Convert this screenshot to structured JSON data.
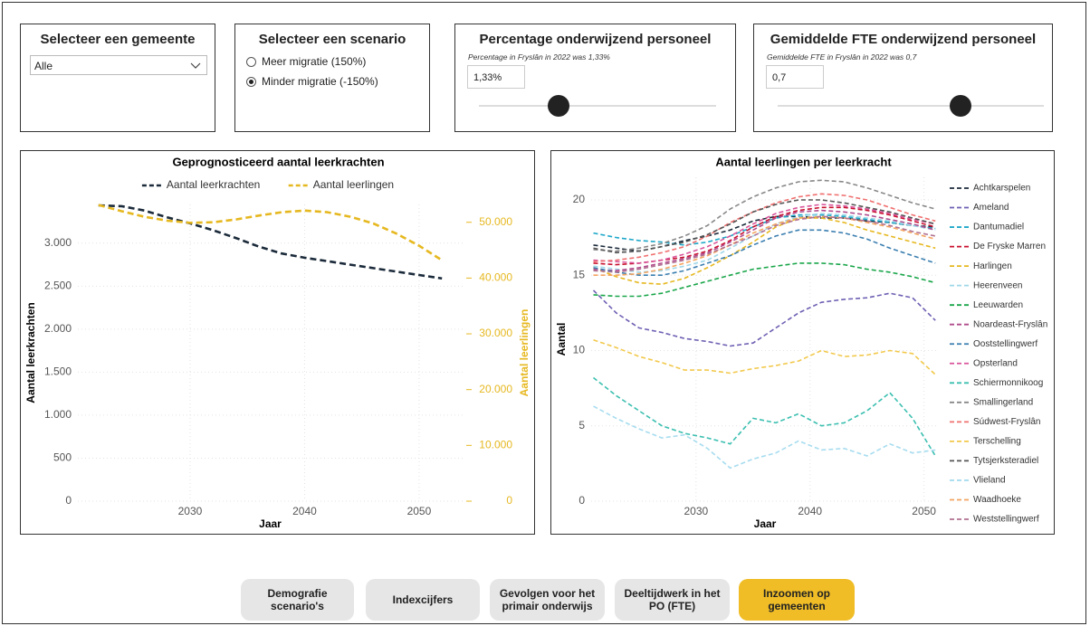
{
  "gemeente_filter": {
    "title": "Selecteer een gemeente",
    "value": "Alle"
  },
  "scenario_filter": {
    "title": "Selecteer een scenario",
    "options": [
      "Meer migratie (150%)",
      "Minder migratie (-150%)"
    ]
  },
  "sliders": [
    {
      "title": "Percentage onderwijzend personeel",
      "subtitle": "Percentage in Fryslân in 2022 was 1,33%",
      "value": "1,33%"
    },
    {
      "title": "Gemiddelde FTE onderwijzend personeel",
      "subtitle": "Gemiddelde FTE in Fryslân in 2022 was 0,7",
      "value": "0,7"
    }
  ],
  "chart_data": [
    {
      "type": "line",
      "title": "Geprognosticeerd aantal leerkrachten",
      "legend": "top",
      "grid": true,
      "xlabel": "Jaar",
      "ylabel": "Aantal leerkrachten",
      "y2label": "Aantal leerlingen",
      "x": [
        2022,
        2024,
        2026,
        2028,
        2030,
        2032,
        2034,
        2036,
        2038,
        2040,
        2042,
        2044,
        2046,
        2048,
        2050,
        2052
      ],
      "xlim": [
        2020.2,
        2053.8
      ],
      "xticks": [
        2030,
        2040,
        2050
      ],
      "ylim": [
        0,
        3450
      ],
      "yticks": [
        0,
        500,
        {
          "value": 1000,
          "label": "1.000"
        },
        {
          "value": 1500,
          "label": "1.500"
        },
        {
          "value": 2000,
          "label": "2.000"
        },
        {
          "value": 2500,
          "label": "2.500"
        },
        {
          "value": 3000,
          "label": "3.000"
        }
      ],
      "y2lim": [
        0,
        53200
      ],
      "y2ticks": [
        0,
        {
          "value": 10000,
          "label": "10.000"
        },
        {
          "value": 20000,
          "label": "20.000"
        },
        {
          "value": 30000,
          "label": "30.000"
        },
        {
          "value": 40000,
          "label": "40.000"
        },
        {
          "value": 50000,
          "label": "50.000"
        }
      ],
      "series": [
        {
          "name": "Aantal leerkrachten",
          "color": "#1b2a3a",
          "values": [
            3440,
            3430,
            3380,
            3300,
            3230,
            3150,
            3060,
            2960,
            2880,
            2830,
            2790,
            2750,
            2710,
            2670,
            2630,
            2590
          ]
        },
        {
          "name": "Aantal leerlingen",
          "color": "#e6b820",
          "axis": "y2",
          "values": [
            53100,
            52000,
            51000,
            50300,
            49900,
            50000,
            50500,
            51200,
            51800,
            52100,
            51800,
            51000,
            49800,
            48000,
            45800,
            43200
          ]
        }
      ]
    },
    {
      "type": "line",
      "title": "Aantal leerlingen per leerkracht",
      "legend": "right",
      "grid": true,
      "xlabel": "Jaar",
      "ylabel": "Aantal",
      "x": [
        2021,
        2023,
        2025,
        2027,
        2029,
        2031,
        2033,
        2035,
        2037,
        2039,
        2041,
        2043,
        2045,
        2047,
        2049,
        2051
      ],
      "xlim": [
        2020.8,
        2051.3
      ],
      "xticks": [
        2030,
        2040,
        2050
      ],
      "ylim": [
        0,
        21.5
      ],
      "yticks": [
        0,
        5,
        10,
        15,
        20
      ],
      "series": [
        {
          "name": "Achtkarspelen",
          "color": "#1b2a3a",
          "values": [
            17.0,
            16.8,
            16.6,
            16.9,
            17.3,
            17.6,
            18.0,
            18.6,
            18.9,
            18.9,
            18.8,
            18.8,
            18.6,
            18.5,
            18.3,
            18.2
          ]
        },
        {
          "name": "Ameland",
          "color": "#6f5fb3",
          "values": [
            14.0,
            12.5,
            11.5,
            11.2,
            10.8,
            10.6,
            10.3,
            10.5,
            11.5,
            12.5,
            13.2,
            13.4,
            13.5,
            13.8,
            13.5,
            12.0
          ]
        },
        {
          "name": "Dantumadiel",
          "color": "#1fa8c9",
          "values": [
            17.8,
            17.5,
            17.3,
            17.2,
            17.0,
            17.2,
            17.6,
            18.2,
            18.8,
            19.0,
            19.0,
            18.9,
            18.7,
            18.5,
            18.3,
            18.1
          ]
        },
        {
          "name": "De Fryske Marren",
          "color": "#c8102e",
          "values": [
            15.8,
            15.7,
            15.8,
            16.0,
            16.2,
            16.6,
            17.3,
            18.2,
            18.9,
            19.3,
            19.5,
            19.5,
            19.3,
            19.0,
            18.6,
            18.2
          ]
        },
        {
          "name": "Harlingen",
          "color": "#e6b820",
          "values": [
            15.5,
            14.9,
            14.5,
            14.4,
            14.8,
            15.5,
            16.3,
            17.2,
            18.2,
            18.8,
            18.8,
            18.5,
            18.0,
            17.6,
            17.2,
            16.8
          ]
        },
        {
          "name": "Heerenveen",
          "color": "#9fd7e8",
          "values": [
            15.6,
            15.4,
            15.2,
            15.3,
            15.6,
            16.0,
            16.8,
            17.6,
            18.4,
            18.9,
            19.1,
            19.0,
            18.8,
            18.6,
            18.3,
            18.0
          ]
        },
        {
          "name": "Leeuwarden",
          "color": "#1aa64a",
          "values": [
            13.7,
            13.6,
            13.6,
            13.8,
            14.2,
            14.6,
            15.0,
            15.4,
            15.6,
            15.8,
            15.8,
            15.7,
            15.4,
            15.2,
            14.9,
            14.5
          ]
        },
        {
          "name": "Noardeast-Fryslân",
          "color": "#b04a8c",
          "values": [
            15.4,
            15.3,
            15.5,
            15.8,
            16.1,
            16.5,
            17.2,
            18.0,
            18.8,
            19.2,
            19.3,
            19.2,
            19.0,
            18.7,
            18.4,
            18.0
          ]
        },
        {
          "name": "Ooststellingwerf",
          "color": "#3b7fb0",
          "values": [
            15.5,
            15.2,
            15.0,
            15.0,
            15.3,
            15.8,
            16.3,
            17.0,
            17.6,
            18.0,
            18.0,
            17.8,
            17.4,
            16.8,
            16.3,
            15.8
          ]
        },
        {
          "name": "Opsterland",
          "color": "#d9559b",
          "values": [
            16.0,
            15.9,
            15.8,
            16.0,
            16.4,
            16.9,
            17.6,
            18.4,
            19.1,
            19.5,
            19.7,
            19.6,
            19.4,
            19.1,
            18.7,
            18.4
          ]
        },
        {
          "name": "Schiermonnikoog",
          "color": "#3bbfb0",
          "values": [
            8.2,
            7.0,
            6.0,
            5.0,
            4.5,
            4.2,
            3.8,
            5.5,
            5.2,
            5.8,
            5.0,
            5.2,
            6.0,
            7.2,
            5.5,
            3.0
          ]
        },
        {
          "name": "Smallingerland",
          "color": "#888888",
          "values": [
            16.7,
            16.6,
            16.8,
            17.1,
            17.6,
            18.3,
            19.4,
            20.2,
            20.8,
            21.2,
            21.3,
            21.2,
            20.8,
            20.3,
            19.8,
            19.4
          ]
        },
        {
          "name": "Súdwest-Fryslân",
          "color": "#f07070",
          "values": [
            15.9,
            16.0,
            16.2,
            16.5,
            16.9,
            17.6,
            18.5,
            19.2,
            19.8,
            20.2,
            20.4,
            20.3,
            20.0,
            19.5,
            19.0,
            18.6
          ]
        },
        {
          "name": "Terschelling",
          "color": "#f2c94c",
          "values": [
            10.7,
            10.2,
            9.6,
            9.2,
            8.7,
            8.7,
            8.5,
            8.8,
            9.0,
            9.3,
            10.0,
            9.6,
            9.7,
            10.0,
            9.8,
            8.4
          ]
        },
        {
          "name": "Tytsjerksteradiel",
          "color": "#555555",
          "values": [
            16.8,
            16.5,
            16.6,
            16.9,
            17.2,
            17.7,
            18.4,
            19.2,
            19.7,
            20.0,
            20.0,
            19.8,
            19.5,
            19.2,
            18.8,
            18.4
          ]
        },
        {
          "name": "Vlieland",
          "color": "#a7dcef",
          "values": [
            6.3,
            5.5,
            4.8,
            4.2,
            4.4,
            3.5,
            2.2,
            2.8,
            3.2,
            4.0,
            3.4,
            3.5,
            3.0,
            3.8,
            3.2,
            3.4
          ]
        },
        {
          "name": "Waadhoeke",
          "color": "#f4a460",
          "values": [
            15.0,
            15.0,
            15.1,
            15.4,
            15.8,
            16.3,
            17.0,
            17.8,
            18.4,
            18.8,
            18.9,
            18.8,
            18.5,
            18.2,
            17.8,
            17.4
          ]
        },
        {
          "name": "Weststellingwerf",
          "color": "#b07090",
          "values": [
            15.3,
            15.2,
            15.4,
            15.7,
            16.0,
            16.4,
            17.0,
            17.6,
            18.3,
            18.7,
            18.9,
            18.8,
            18.6,
            18.3,
            17.9,
            17.6
          ]
        }
      ]
    }
  ],
  "buttons": [
    "Demografie scenario's",
    "Indexcijfers",
    "Gevolgen voor het primair onderwijs",
    "Deeltijdwerk in het PO (FTE)",
    "Inzoomen op gemeenten"
  ]
}
